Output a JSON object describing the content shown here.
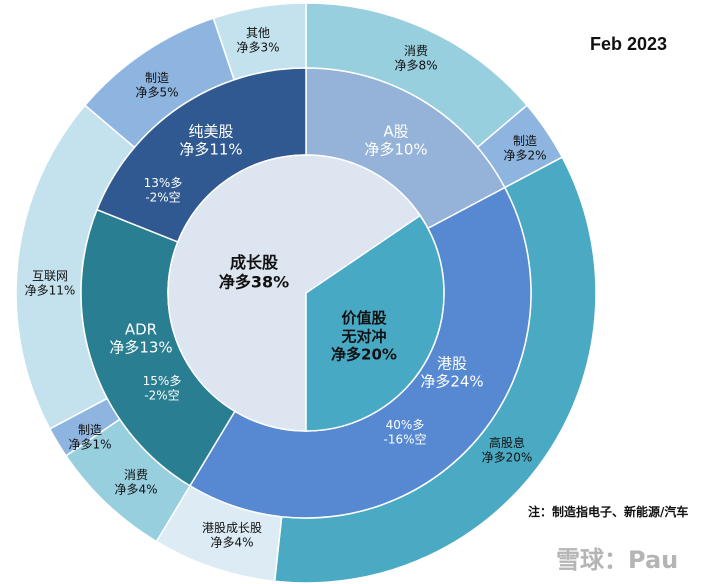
{
  "header": {
    "date": "Feb 2023"
  },
  "footnote": "注：制造指电子、新能源/汽车",
  "watermark": "雪球：Pau",
  "chart_data": {
    "type": "pie",
    "center": {
      "name": "成长股",
      "label": "净多38%",
      "value": 38,
      "color": "#dce5f0",
      "text_color": "#111111",
      "sub": {
        "name": "价值股",
        "name2": "无对冲",
        "label": "净多20%",
        "value": 20,
        "color": "#48a9c4",
        "text_color": "#111111"
      }
    },
    "middle_ring": [
      {
        "name": "A股",
        "label": "净多10%",
        "value": 10,
        "color": "#95b2d8",
        "text_color": "#ffffff"
      },
      {
        "name": "港股",
        "label": "净多24%",
        "value": 24,
        "color": "#5689d2",
        "text_color": "#ffffff",
        "sub": "40%多",
        "sub2": "-16%空"
      },
      {
        "name": "ADR",
        "label": "净多13%",
        "value": 13,
        "color": "#2a7e91",
        "text_color": "#ffffff",
        "sub": "15%多",
        "sub2": "-2%空"
      },
      {
        "name": "纯美股",
        "label": "净多11%",
        "value": 11,
        "color": "#2f5990",
        "text_color": "#ffffff",
        "sub": "13%多",
        "sub2": "-2%空"
      }
    ],
    "outer_ring": [
      {
        "name": "消费",
        "label": "净多8%",
        "value": 8,
        "color": "#98cfdf"
      },
      {
        "name": "制造",
        "label": "净多2%",
        "value": 2,
        "color": "#8eb5e0"
      },
      {
        "name": "高股息",
        "label": "净多20%",
        "value": 20,
        "color": "#4aaac4"
      },
      {
        "name": "港股成长股",
        "label": "净多4%",
        "value": 4,
        "color": "#dcebf4"
      },
      {
        "name": "消费",
        "label": "净多4%",
        "value": 4,
        "color": "#98cfdf"
      },
      {
        "name": "制造",
        "label": "净多1%",
        "value": 1,
        "color": "#8eb5e0"
      },
      {
        "name": "互联网",
        "label": "净多11%",
        "value": 11,
        "color": "#c4e2ed"
      },
      {
        "name": "制造",
        "label": "净多5%",
        "value": 5,
        "color": "#8eb5e0"
      },
      {
        "name": "其他",
        "label": "净多3%",
        "value": 3,
        "color": "#c4e2ed"
      }
    ]
  }
}
